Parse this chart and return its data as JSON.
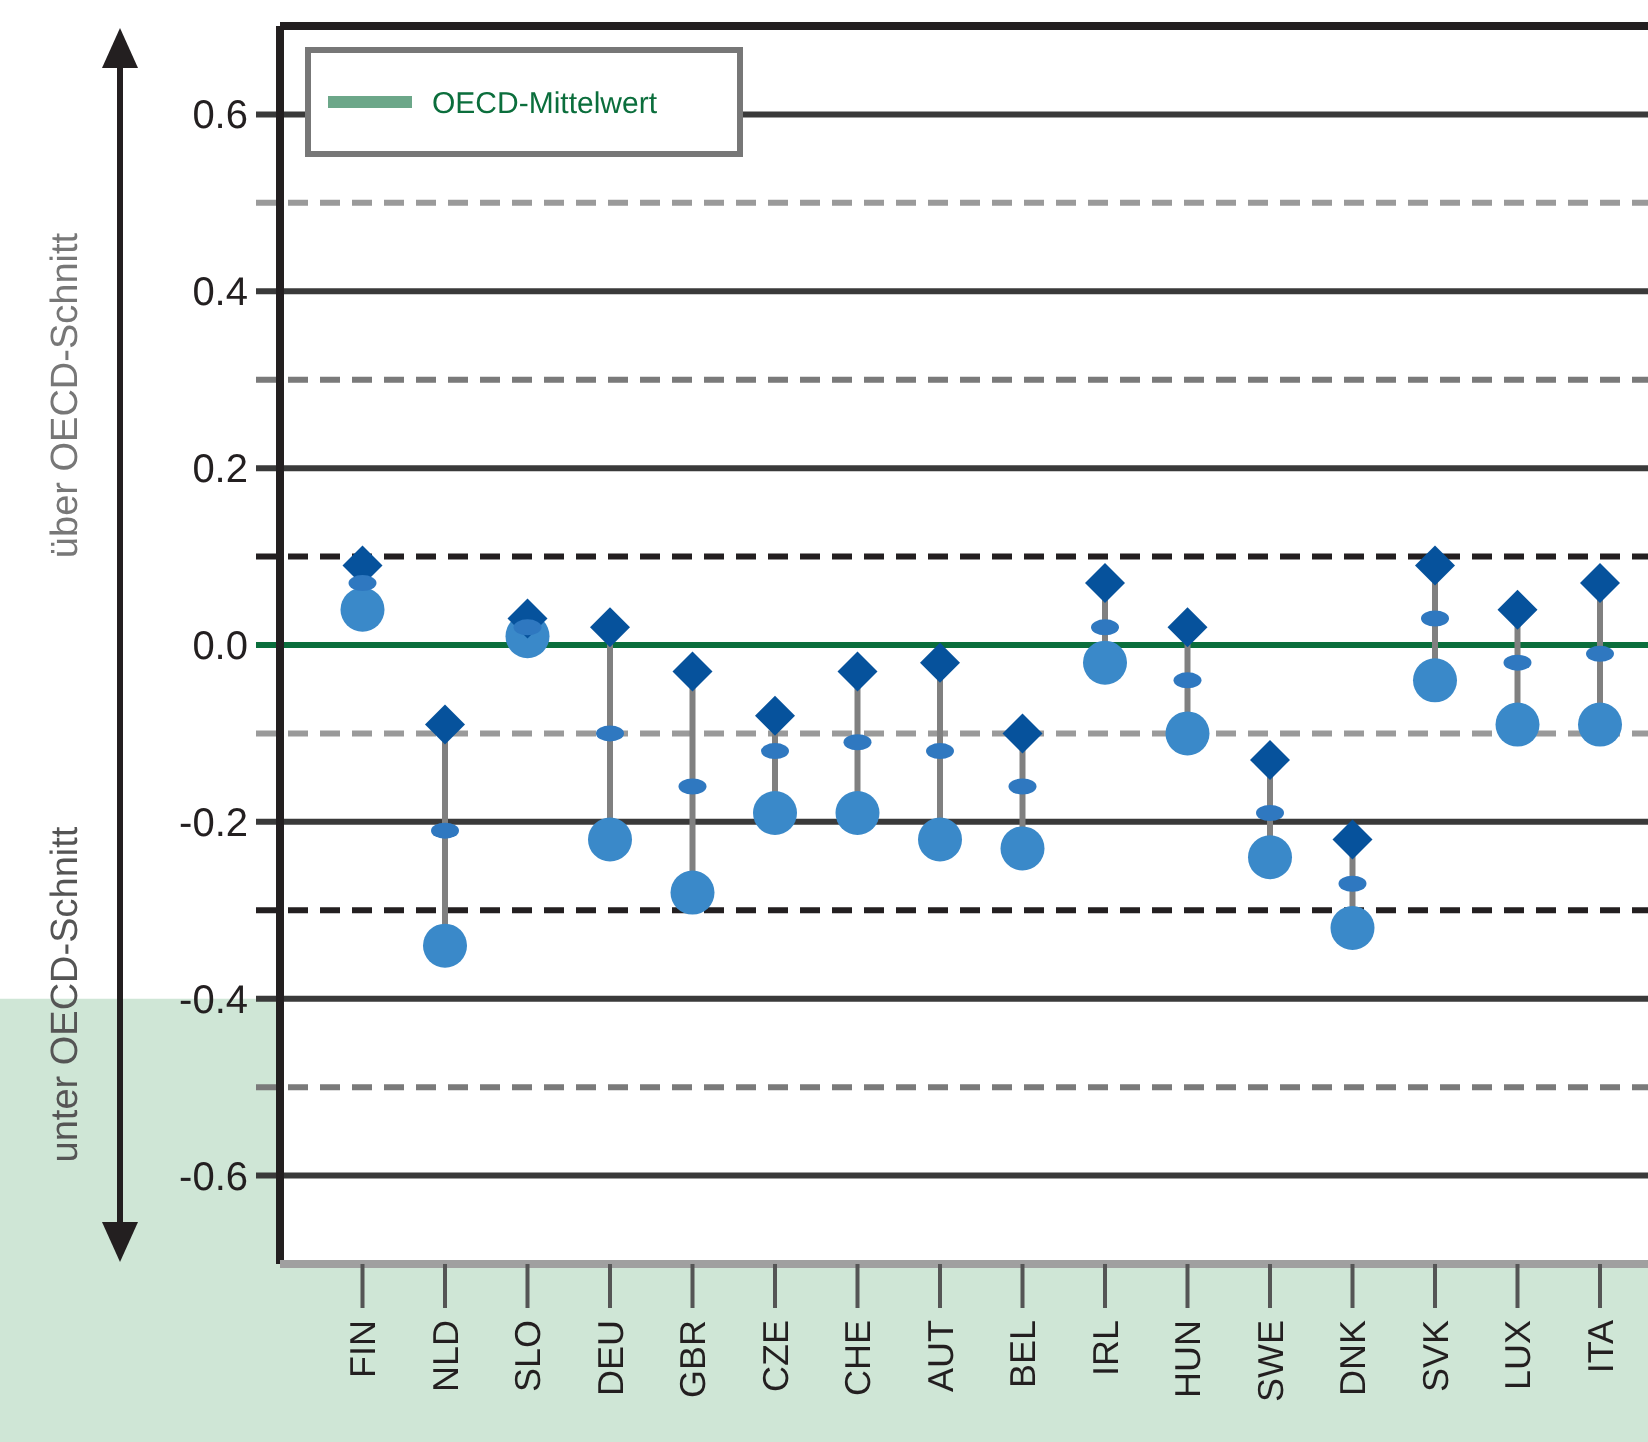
{
  "chart_data": {
    "type": "scatter",
    "categories": [
      "FIN",
      "NLD",
      "SLO",
      "DEU",
      "GBR",
      "CZE",
      "CHE",
      "AUT",
      "BEL",
      "IRL",
      "HUN",
      "SWE",
      "DNK",
      "SVK",
      "LUX",
      "ITA"
    ],
    "series": [
      {
        "type": "scatter",
        "marker": "diamond",
        "color": "#06529c",
        "values": [
          0.09,
          -0.09,
          0.03,
          0.02,
          -0.03,
          -0.08,
          -0.03,
          -0.02,
          -0.1,
          0.07,
          0.02,
          -0.13,
          -0.22,
          0.09,
          0.04,
          0.07
        ]
      },
      {
        "type": "scatter",
        "marker": "circle",
        "color": "#3a89c9",
        "values": [
          0.04,
          -0.34,
          0.01,
          -0.22,
          -0.28,
          -0.19,
          -0.19,
          -0.22,
          -0.23,
          -0.02,
          -0.1,
          -0.24,
          -0.32,
          -0.04,
          -0.09,
          -0.09
        ]
      },
      {
        "type": "scatter",
        "color": "#2f78c0",
        "values": [
          0.07,
          -0.21,
          0.02,
          -0.1,
          -0.16,
          -0.12,
          -0.11,
          -0.12,
          -0.16,
          0.02,
          -0.04,
          -0.19,
          -0.27,
          0.03,
          -0.02,
          -0.01
        ]
      }
    ],
    "ylim": [
      -0.7,
      0.7
    ],
    "yticks": [
      0.6,
      0.4,
      0.2,
      {
        "value": 0,
        "label": "0.0"
      },
      -0.2,
      -0.4,
      -0.6
    ],
    "grid": "y",
    "ref_lines": [
      {
        "axis": "y",
        "value": 0,
        "label": "OECD-Mittelwert",
        "color": "#0b6e3c",
        "line_style": "solid"
      },
      {
        "axis": "y",
        "value": 0.5,
        "color": "#9a9a9a",
        "line_style": "dashed"
      },
      {
        "axis": "y",
        "value": 0.3,
        "color": "#7a7a7a",
        "line_style": "dashed"
      },
      {
        "axis": "y",
        "value": 0.1,
        "color": "#231f20",
        "line_style": "dashed"
      },
      {
        "axis": "y",
        "value": -0.1,
        "color": "#9a9a9a",
        "line_style": "dashed"
      },
      {
        "axis": "y",
        "value": -0.3,
        "color": "#231f20",
        "line_style": "dashed"
      },
      {
        "axis": "y",
        "value": -0.5,
        "color": "#7a7a7a",
        "line_style": "dashed"
      }
    ],
    "legend": "top left",
    "annotations": [
      "über OECD-Schnitt",
      "unter OECD-Schnitt"
    ]
  }
}
